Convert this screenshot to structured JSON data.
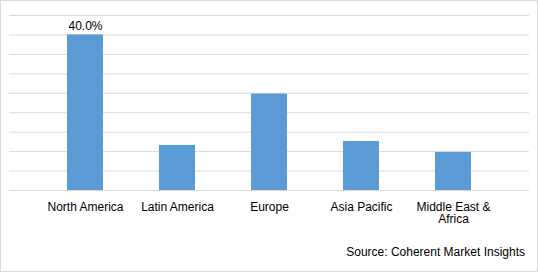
{
  "chart_data": {
    "type": "bar",
    "categories": [
      "North America",
      "Latin America",
      "Europe",
      "Asia Pacific",
      "Middle East & Africa"
    ],
    "values": [
      40.0,
      11.6,
      24.8,
      12.6,
      9.8
    ],
    "value_labels": [
      "40.0%",
      null,
      null,
      null,
      null
    ],
    "data_labels": true,
    "color": "#5b9bd5",
    "ylim": [
      0,
      45
    ],
    "yticks": [
      0,
      5,
      10,
      15,
      20,
      25,
      30,
      35,
      40,
      45
    ],
    "grid": true,
    "tick_labels": "x",
    "caption": "Source: Coherent Market Insights"
  }
}
